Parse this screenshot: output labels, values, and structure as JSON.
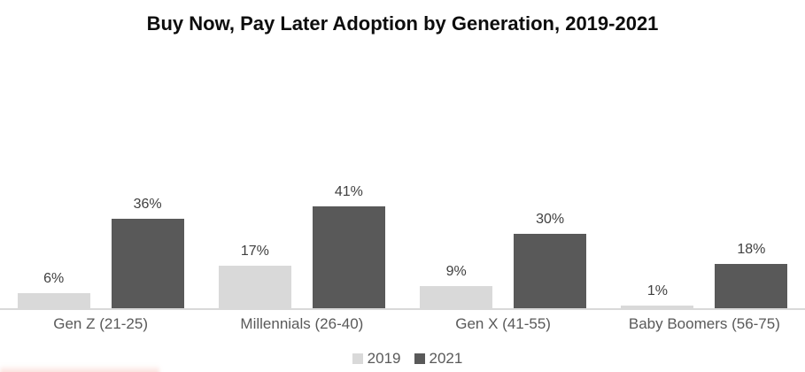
{
  "title": "Buy Now, Pay Later Adoption by Generation, 2019-2021",
  "chart_data": {
    "type": "bar",
    "title": "Buy Now, Pay Later Adoption by Generation, 2019-2021",
    "categories": [
      "Gen Z (21-25)",
      "Millennials (26-40)",
      "Gen X (41-55)",
      "Baby Boomers (56-75)"
    ],
    "series": [
      {
        "name": "2019",
        "color": "#d9d9d9",
        "values": [
          6,
          17,
          9,
          1
        ]
      },
      {
        "name": "2021",
        "color": "#595959",
        "values": [
          36,
          41,
          30,
          18
        ]
      }
    ],
    "data_labels": [
      [
        "6%",
        "17%",
        "9%",
        "1%"
      ],
      [
        "36%",
        "41%",
        "30%",
        "18%"
      ]
    ],
    "label_suffix": "%",
    "xlabel": "",
    "ylabel": "",
    "ylim": [
      0,
      45
    ],
    "grid": false,
    "y_axis_visible": false,
    "legend_position": "bottom",
    "legend_entries": [
      "2019",
      "2021"
    ]
  },
  "colors": {
    "series_2019": "#d9d9d9",
    "series_2021": "#595959",
    "axis_line": "#d9d9d9",
    "data_label": "#404040",
    "category_label": "#595959",
    "title_text": "#0d0d0d",
    "cropped_logo_tint": "#ec7864"
  }
}
